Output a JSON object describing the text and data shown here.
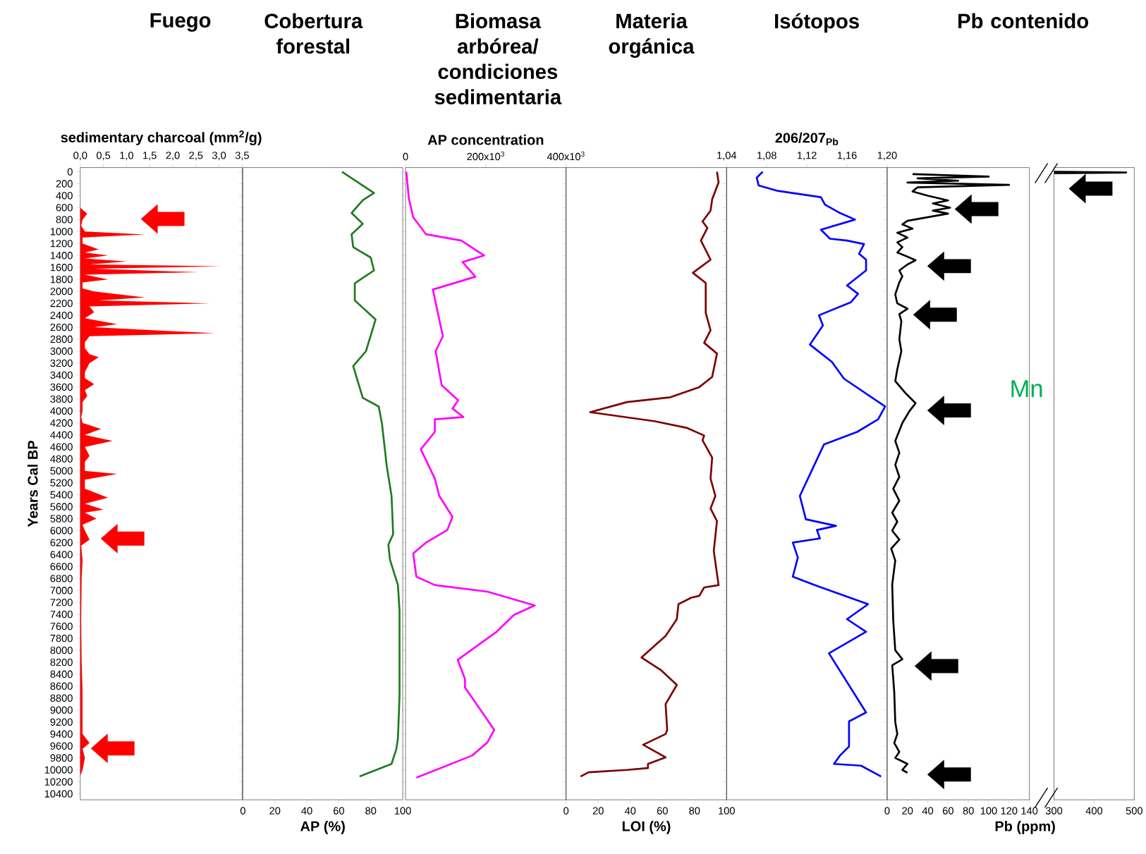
{
  "chart_data": [
    {
      "type": "area",
      "orientation": "horizontal",
      "title": "Fuego",
      "xlabel": "sedimentary charcoal (mm$^{2}$/g)",
      "ylabel": "Years Cal BP",
      "color": "#ff0000",
      "xlim": [
        0,
        3.5
      ],
      "xticks": [
        {
          "value": 0,
          "label": "0,0"
        },
        {
          "value": 0.5,
          "label": "0,5"
        },
        {
          "value": 1,
          "label": "1,0"
        },
        {
          "value": 1.5,
          "label": "1,5"
        },
        {
          "value": 2,
          "label": "2,0"
        },
        {
          "value": 2.5,
          "label": "2,5"
        },
        {
          "value": 3,
          "label": "3,0"
        },
        {
          "value": 3.5,
          "label": "3,5"
        }
      ],
      "ylim": [
        10500,
        -70
      ],
      "yticks": [
        0,
        200,
        400,
        600,
        800,
        1000,
        1200,
        1400,
        1600,
        1800,
        2000,
        2200,
        2400,
        2600,
        2800,
        3000,
        3200,
        3400,
        3600,
        3800,
        4000,
        4200,
        4400,
        4600,
        4800,
        5000,
        5200,
        5400,
        5600,
        5800,
        6000,
        6200,
        6400,
        6600,
        6800,
        7000,
        7200,
        7400,
        7600,
        7800,
        8000,
        8200,
        8400,
        8600,
        8800,
        9000,
        9200,
        9400,
        9600,
        9800,
        10000,
        10200,
        10400
      ],
      "x": [
        0,
        600,
        700,
        800,
        900,
        1000,
        1050,
        1100,
        1200,
        1300,
        1350,
        1400,
        1450,
        1500,
        1550,
        1580,
        1620,
        1680,
        1720,
        1800,
        1850,
        1950,
        2000,
        2100,
        2150,
        2200,
        2250,
        2350,
        2450,
        2550,
        2600,
        2700,
        2750,
        2850,
        2950,
        3050,
        3100,
        3200,
        3350,
        3450,
        3550,
        3650,
        3750,
        3850,
        4000,
        4100,
        4200,
        4300,
        4400,
        4500,
        4600,
        4750,
        4850,
        5000,
        5050,
        5150,
        5300,
        5450,
        5550,
        5650,
        5700,
        5800,
        5900,
        6000,
        6150,
        6250,
        6500,
        6800,
        7500,
        8200,
        8700,
        9000,
        9400,
        9550,
        9650,
        9800,
        10000,
        10100
      ],
      "values": [
        0,
        0,
        0.15,
        0.05,
        0.02,
        0.1,
        1.4,
        0.05,
        0.05,
        0.4,
        0.1,
        0.6,
        0.1,
        1.0,
        0.2,
        3.05,
        0.3,
        2.55,
        0.1,
        0.6,
        0.05,
        0.05,
        0.3,
        1.4,
        0.4,
        2.8,
        0.2,
        0.3,
        0.1,
        0.8,
        0.3,
        2.9,
        0.2,
        0.1,
        0.1,
        0.2,
        0.4,
        0.2,
        0.1,
        0.1,
        0.3,
        0.1,
        0.15,
        0.05,
        0.05,
        0.02,
        0.05,
        0.45,
        0.1,
        0.7,
        0.1,
        0.2,
        0.1,
        0.1,
        0.8,
        0.1,
        0.1,
        0.6,
        0.1,
        0.5,
        0.1,
        0.35,
        0.05,
        0.1,
        0.2,
        0.02,
        0.05,
        0.03,
        0.02,
        0.03,
        0.05,
        0.05,
        0.05,
        0.2,
        0.05,
        0.1,
        0.05,
        0
      ]
    },
    {
      "type": "line",
      "orientation": "horizontal",
      "title": "Cobertura forestal",
      "xlabel": "AP (%)",
      "color": "#1e7b1e",
      "tick_labels": "x",
      "xlim": [
        0,
        100
      ],
      "xticks": [
        0,
        20,
        40,
        60,
        80,
        100
      ],
      "ylim": [
        10500,
        -70
      ],
      "yticks": [
        0,
        200,
        400,
        600,
        800,
        1000,
        1200,
        1400,
        1600,
        1800,
        2000,
        2200,
        2400,
        2600,
        2800,
        3000,
        3200,
        3400,
        3600,
        3800,
        4000,
        4200,
        4400,
        4600,
        4800,
        5000,
        5200,
        5400,
        5600,
        5800,
        6000,
        6200,
        6400,
        6600,
        6800,
        7000,
        7200,
        7400,
        7600,
        7800,
        8000,
        8200,
        8400,
        8600,
        8800,
        9000,
        9200,
        9400,
        9600,
        9800,
        10000,
        10200,
        10400
      ],
      "x": [
        0,
        355,
        475,
        690,
        870,
        1045,
        1260,
        1435,
        1650,
        1865,
        2150,
        2470,
        3000,
        3250,
        3780,
        3925,
        4210,
        4920,
        5420,
        6060,
        6235,
        6485,
        6910,
        7340,
        8760,
        9470,
        9650,
        9900,
        10110
      ],
      "values": [
        62,
        82,
        75,
        68,
        75,
        68,
        69,
        80,
        82,
        70,
        70,
        83,
        77,
        69,
        75,
        85,
        87,
        90,
        93,
        94,
        91,
        92,
        97,
        98,
        98,
        97,
        96,
        93,
        73
      ]
    },
    {
      "type": "line",
      "orientation": "horizontal",
      "title": "Biomasa arbórea/ condiciones sedimentaria",
      "xlabel": "AP concentration",
      "color": "#ff00ff",
      "tick_labels": "x",
      "xlim": [
        0,
        400000
      ],
      "xticks": [
        0,
        {
          "value": 200000,
          "label": "200x10$^{3}$"
        },
        {
          "value": 400000,
          "label": "400x10$^{3}$"
        }
      ],
      "ylim": [
        10500,
        -70
      ],
      "yticks": [
        0,
        200,
        400,
        600,
        800,
        1000,
        1200,
        1400,
        1600,
        1800,
        2000,
        2200,
        2400,
        2600,
        2800,
        3000,
        3200,
        3400,
        3600,
        3800,
        4000,
        4200,
        4400,
        4600,
        4800,
        5000,
        5200,
        5400,
        5600,
        5800,
        6000,
        6200,
        6400,
        6600,
        6800,
        7000,
        7200,
        7400,
        7600,
        7800,
        8000,
        8200,
        8400,
        8600,
        8800,
        9000,
        9200,
        9400,
        9600,
        9800,
        10000,
        10200,
        10400
      ],
      "x": [
        0,
        440,
        760,
        1045,
        1150,
        1400,
        1510,
        1755,
        1970,
        2750,
        3000,
        3570,
        3820,
        3960,
        4100,
        4140,
        4350,
        4640,
        5130,
        5420,
        5770,
        5990,
        6200,
        6380,
        6770,
        6910,
        7020,
        7250,
        7410,
        7690,
        8160,
        8480,
        8620,
        9330,
        9540,
        9760,
        10130
      ],
      "values": [
        2000,
        8000,
        19000,
        51000,
        139000,
        196000,
        142000,
        174000,
        68000,
        93000,
        75000,
        90000,
        131000,
        117000,
        144000,
        73000,
        73000,
        38000,
        73000,
        84000,
        117000,
        104000,
        51000,
        19000,
        27000,
        73000,
        204000,
        322000,
        270000,
        227000,
        130000,
        148000,
        148000,
        221000,
        204000,
        166000,
        27000
      ]
    },
    {
      "type": "line",
      "orientation": "horizontal",
      "title": "Materia orgánica",
      "xlabel": "LOI (%)",
      "color": "#7b0000",
      "tick_labels": "x",
      "xlim": [
        0,
        100
      ],
      "xticks": [
        0,
        20,
        40,
        60,
        80,
        100
      ],
      "ylim": [
        10500,
        -70
      ],
      "yticks": [
        0,
        200,
        400,
        600,
        800,
        1000,
        1200,
        1400,
        1600,
        1800,
        2000,
        2200,
        2400,
        2600,
        2800,
        3000,
        3200,
        3400,
        3600,
        3800,
        4000,
        4200,
        4400,
        4600,
        4800,
        5000,
        5200,
        5400,
        5600,
        5800,
        6000,
        6200,
        6400,
        6600,
        6800,
        7000,
        7200,
        7400,
        7600,
        7800,
        8000,
        8200,
        8400,
        8600,
        8800,
        9000,
        9200,
        9400,
        9600,
        9800,
        10000,
        10200,
        10400
      ],
      "x": [
        0,
        180,
        460,
        650,
        830,
        940,
        1150,
        1470,
        1690,
        1860,
        2360,
        2650,
        2860,
        3040,
        3430,
        3600,
        3770,
        3850,
        4020,
        4170,
        4280,
        4410,
        4490,
        4780,
        5130,
        5420,
        5630,
        5840,
        6340,
        6910,
        6950,
        7090,
        7120,
        7230,
        7480,
        7760,
        8120,
        8330,
        8580,
        8900,
        9330,
        9400,
        9580,
        9790,
        9900,
        9970,
        10000,
        10040,
        10110
      ],
      "values": [
        94,
        95,
        91,
        90,
        85,
        88,
        84,
        90,
        79,
        87,
        87,
        90,
        86,
        94,
        91,
        83,
        65,
        38,
        15,
        55,
        75,
        86,
        85,
        91,
        90,
        93,
        90,
        94,
        92,
        95,
        86,
        83,
        78,
        70,
        69,
        62,
        47,
        59,
        69,
        62,
        63,
        62,
        48,
        62,
        51,
        51,
        38,
        14,
        9
      ]
    },
    {
      "type": "line",
      "orientation": "horizontal",
      "title": "Isótopos",
      "xlabel": "206/207$_{Pb}$",
      "color": "#0000ff",
      "tick_labels": "x",
      "xlim": [
        1.04,
        1.2
      ],
      "xticks": [
        {
          "value": 1.04,
          "label": "1,04"
        },
        {
          "value": 1.08,
          "label": "1,08"
        },
        {
          "value": 1.12,
          "label": "1,12"
        },
        {
          "value": 1.16,
          "label": "1,16"
        },
        {
          "value": 1.2,
          "label": "1,20"
        }
      ],
      "ylim": [
        10500,
        -70
      ],
      "yticks": [
        0,
        200,
        400,
        600,
        800,
        1000,
        1200,
        1400,
        1600,
        1800,
        2000,
        2200,
        2400,
        2600,
        2800,
        3000,
        3200,
        3400,
        3600,
        3800,
        4000,
        4200,
        4400,
        4600,
        4800,
        5000,
        5200,
        5400,
        5600,
        5800,
        6000,
        6200,
        6400,
        6600,
        6800,
        7000,
        7200,
        7400,
        7600,
        7800,
        8000,
        8200,
        8400,
        8600,
        8800,
        9000,
        9200,
        9400,
        9600,
        9800,
        10000,
        10200,
        10400
      ],
      "x": [
        0,
        100,
        230,
        320,
        425,
        550,
        690,
        800,
        970,
        1120,
        1150,
        1210,
        1370,
        1470,
        1650,
        1900,
        2040,
        2180,
        2400,
        2570,
        2890,
        3180,
        3460,
        3925,
        4140,
        4350,
        4560,
        5420,
        5810,
        5920,
        5990,
        6130,
        6200,
        6450,
        6770,
        6910,
        7230,
        7480,
        7690,
        8050,
        9040,
        9190,
        9610,
        9760,
        9900,
        9930,
        10110
      ],
      "values": [
        1.076,
        1.07,
        1.072,
        1.091,
        1.134,
        1.138,
        1.153,
        1.168,
        1.134,
        1.143,
        1.16,
        1.177,
        1.172,
        1.179,
        1.179,
        1.16,
        1.171,
        1.164,
        1.132,
        1.136,
        1.123,
        1.145,
        1.157,
        1.198,
        1.191,
        1.17,
        1.137,
        1.113,
        1.119,
        1.149,
        1.13,
        1.133,
        1.106,
        1.111,
        1.106,
        1.128,
        1.181,
        1.16,
        1.179,
        1.142,
        1.179,
        1.162,
        1.162,
        1.153,
        1.147,
        1.174,
        1.194
      ]
    },
    {
      "type": "line",
      "orientation": "horizontal",
      "title": "Pb contenido",
      "xlabel": "Pb (ppm)",
      "color": "#000000",
      "tick_labels": "x",
      "annotations": [
        "Mn"
      ],
      "xlim": [
        0,
        140
      ],
      "xticks": [
        0,
        20,
        40,
        60,
        80,
        100,
        120,
        140
      ],
      "ylim": [
        10500,
        -70
      ],
      "yticks": [
        0,
        200,
        400,
        600,
        800,
        1000,
        1200,
        1400,
        1600,
        1800,
        2000,
        2200,
        2400,
        2600,
        2800,
        3000,
        3200,
        3400,
        3600,
        3800,
        4000,
        4200,
        4400,
        4600,
        4800,
        5000,
        5200,
        5400,
        5600,
        5800,
        6000,
        6200,
        6400,
        6600,
        6800,
        7000,
        7200,
        7400,
        7600,
        7800,
        8000,
        8200,
        8400,
        8600,
        8800,
        9000,
        9200,
        9400,
        9600,
        9800,
        10000,
        10200,
        10400
      ],
      "x": [
        40,
        80,
        110,
        150,
        180,
        220,
        260,
        330,
        400,
        480,
        530,
        600,
        650,
        700,
        760,
        820,
        880,
        950,
        1020,
        1100,
        1180,
        1260,
        1350,
        1420,
        1480,
        1550,
        1650,
        1750,
        1850,
        2050,
        2200,
        2290,
        2380,
        2500,
        2800,
        3000,
        3300,
        3500,
        3700,
        3870,
        4000,
        4200,
        4500,
        4700,
        4900,
        5100,
        5300,
        5500,
        5700,
        5850,
        6000,
        6150,
        6300,
        6500,
        6900,
        7500,
        8000,
        8150,
        8250,
        8700,
        9200,
        9400,
        9550,
        9700,
        9800,
        9900,
        10000,
        10050
      ],
      "values": [
        25,
        100,
        30,
        70,
        20,
        120,
        30,
        25,
        40,
        60,
        45,
        62,
        45,
        60,
        40,
        20,
        15,
        25,
        10,
        20,
        10,
        15,
        10,
        20,
        28,
        20,
        12,
        15,
        12,
        8,
        10,
        20,
        12,
        14,
        12,
        14,
        10,
        8,
        18,
        28,
        22,
        15,
        8,
        12,
        8,
        12,
        6,
        12,
        5,
        10,
        5,
        12,
        4,
        8,
        5,
        6,
        8,
        15,
        5,
        7,
        8,
        10,
        7,
        12,
        8,
        20,
        15,
        20
      ]
    },
    {
      "type": "line",
      "orientation": "horizontal",
      "color": "#000000",
      "tick_labels": "x",
      "xlim": [
        300,
        500
      ],
      "xticks": [
        300,
        400,
        500
      ],
      "ylim": [
        10500,
        -70
      ],
      "x": [
        0,
        12,
        25
      ],
      "values": [
        300,
        480,
        300
      ]
    }
  ]
}
